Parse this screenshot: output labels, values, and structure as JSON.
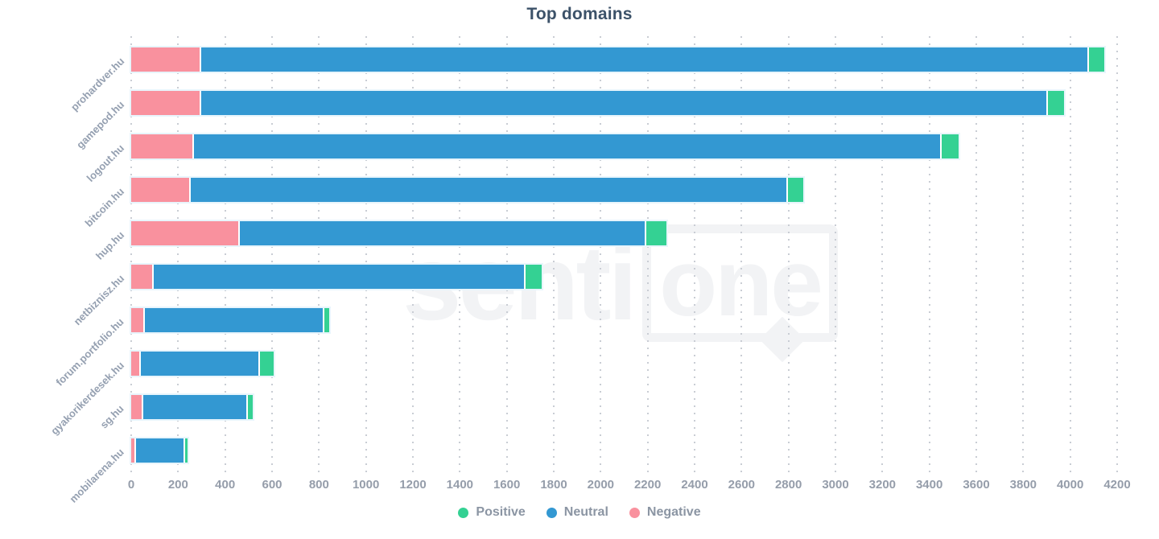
{
  "title": "Top domains",
  "watermark": {
    "part1": "senti",
    "part2": "one"
  },
  "legend": [
    {
      "label": "Positive",
      "color": "#34d193"
    },
    {
      "label": "Neutral",
      "color": "#3398d2"
    },
    {
      "label": "Negative",
      "color": "#f9919e"
    }
  ],
  "colors": {
    "positive": "#34d193",
    "neutral": "#3398d2",
    "negative": "#f9919e",
    "title_text": "#3c5269",
    "axis_text": "#959daa",
    "gridline": "#c9cdd4"
  },
  "chart_data": {
    "type": "bar",
    "orientation": "horizontal",
    "stacked": true,
    "title": "Top domains",
    "xlabel": "",
    "ylabel": "",
    "xlim": [
      0,
      4200
    ],
    "x_tick_step": 200,
    "grid": "dotted-vertical",
    "legend_position": "bottom",
    "categories": [
      "prohardver.hu",
      "gamepod.hu",
      "logout.hu",
      "bitcoin.hu",
      "hup.hu",
      "netbiznisz.hu",
      "forum.portfolio.hu",
      "gyakorikerdesek.hu",
      "sg.hu",
      "mobilarena.hu"
    ],
    "series": [
      {
        "name": "Negative",
        "color": "#f9919e",
        "values": [
          290,
          290,
          260,
          245,
          455,
          90,
          50,
          35,
          45,
          15
        ]
      },
      {
        "name": "Neutral",
        "color": "#3398d2",
        "values": [
          3775,
          3600,
          3180,
          2540,
          1725,
          1575,
          760,
          500,
          440,
          200
        ]
      },
      {
        "name": "Positive",
        "color": "#34d193",
        "values": [
          65,
          70,
          70,
          65,
          85,
          70,
          20,
          60,
          20,
          10
        ]
      }
    ],
    "totals": [
      4130,
      3960,
      3510,
      2850,
      2265,
      1735,
      830,
      595,
      505,
      225
    ]
  }
}
